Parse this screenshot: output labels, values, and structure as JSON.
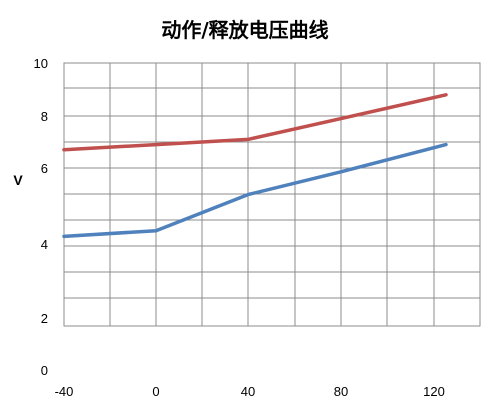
{
  "chart_data": {
    "type": "line",
    "title": "动作/释放电压曲线",
    "xlabel": "",
    "ylabel": "V",
    "x": [
      -40,
      0,
      40,
      80,
      120
    ],
    "x_tick_labels": [
      "-40",
      "0",
      "40",
      "80",
      "120"
    ],
    "y_tick_labels": [
      "0",
      "2",
      "4",
      "6",
      "8",
      "10"
    ],
    "grid": true,
    "legend": "none",
    "series": [
      {
        "color": "#c0504d",
        "points": [
          [
            -40,
            6.7
          ],
          [
            0,
            6.9
          ],
          [
            40,
            7.1
          ],
          [
            80,
            7.9
          ],
          [
            125,
            8.8
          ]
        ]
      },
      {
        "color": "#4f81bd",
        "points": [
          [
            -40,
            4.2
          ],
          [
            0,
            4.35
          ],
          [
            40,
            5.3
          ],
          [
            80,
            5.9
          ],
          [
            125,
            6.9
          ]
        ]
      }
    ]
  }
}
